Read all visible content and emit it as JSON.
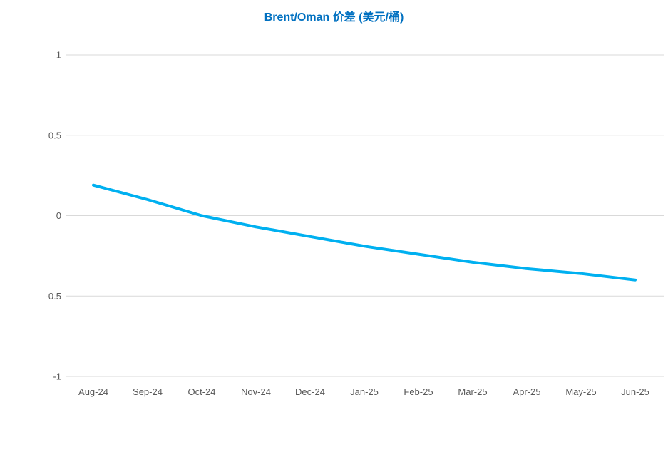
{
  "chart_data": {
    "type": "line",
    "title": "Brent/Oman 价差 (美元/桶)",
    "xlabel": "",
    "ylabel": "",
    "categories": [
      "Aug-24",
      "Sep-24",
      "Oct-24",
      "Nov-24",
      "Dec-24",
      "Jan-25",
      "Feb-25",
      "Mar-25",
      "Apr-25",
      "May-25",
      "Jun-25"
    ],
    "series": [
      {
        "name": "Brent/Oman 价差",
        "color": "#00B0F0",
        "values": [
          0.19,
          0.1,
          0.0,
          -0.07,
          -0.13,
          -0.19,
          -0.24,
          -0.29,
          -0.33,
          -0.36,
          -0.4
        ]
      }
    ],
    "ylim": [
      -1,
      1
    ],
    "yticks": [
      1,
      0.5,
      0,
      -0.5,
      -1
    ],
    "ytick_labels": [
      "1",
      "0.5",
      "0",
      "-0.5",
      "-1"
    ],
    "grid": true,
    "legend": "none",
    "colors": {
      "title": "#0070C0",
      "gridline": "#D9D9D9",
      "axis_text": "#595959",
      "background": "#FFFFFF"
    }
  }
}
